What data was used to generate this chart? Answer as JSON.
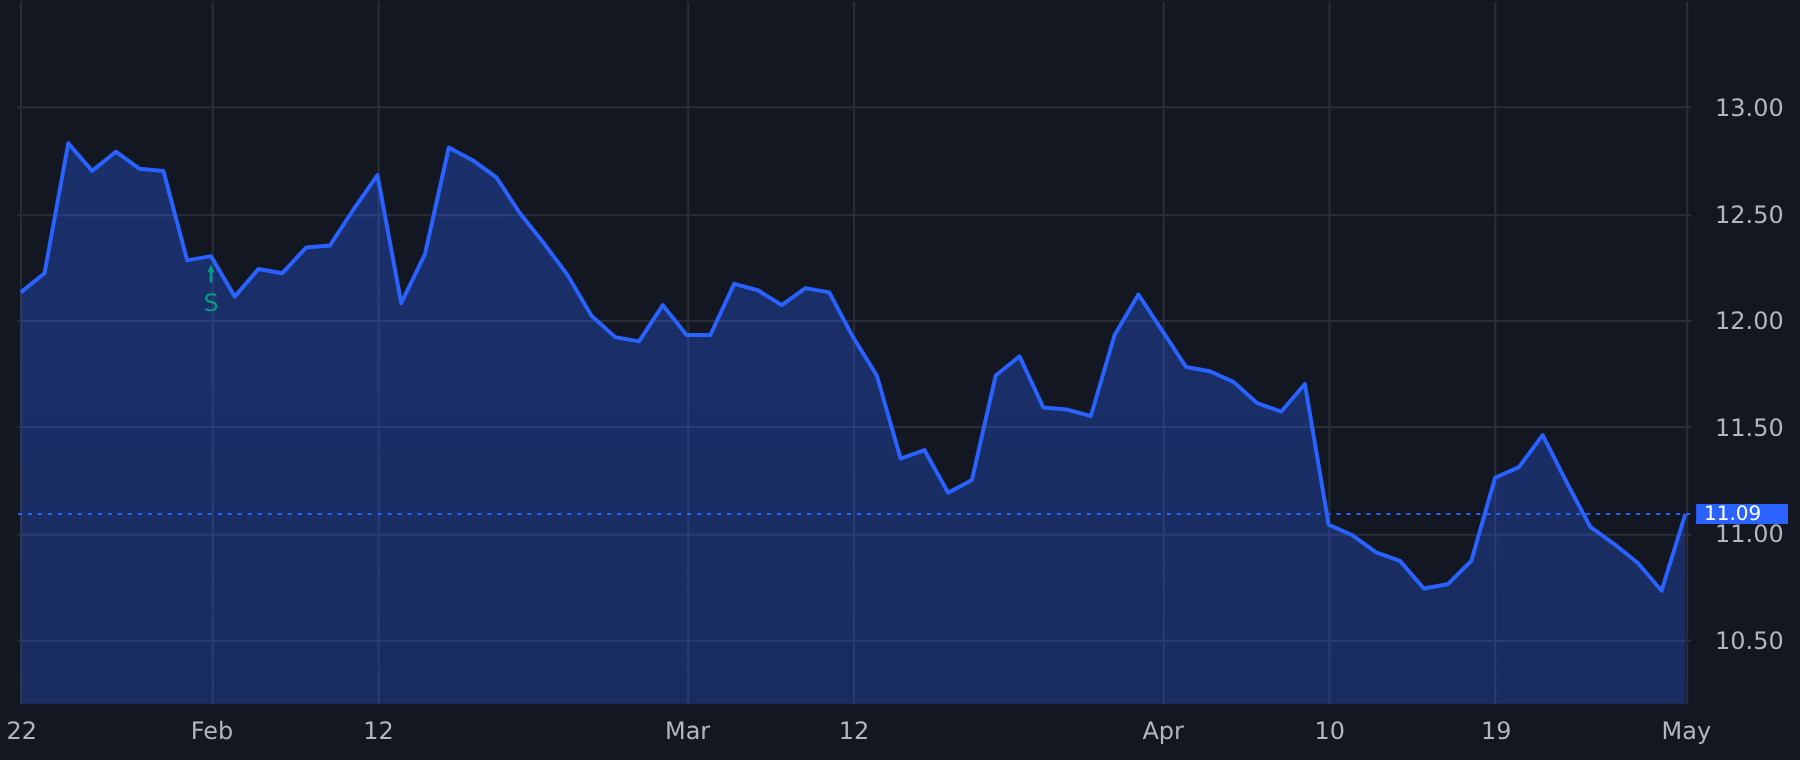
{
  "chart_data": {
    "type": "area",
    "categories": [
      "22",
      null,
      null,
      null,
      null,
      null,
      null,
      null,
      "Feb",
      null,
      null,
      null,
      null,
      null,
      null,
      "12",
      null,
      null,
      null,
      null,
      null,
      null,
      null,
      null,
      null,
      null,
      null,
      null,
      "Mar",
      null,
      null,
      null,
      null,
      null,
      null,
      "12",
      null,
      null,
      null,
      null,
      null,
      null,
      null,
      null,
      null,
      null,
      null,
      null,
      "Apr",
      null,
      null,
      null,
      null,
      null,
      null,
      "10",
      null,
      null,
      null,
      null,
      null,
      null,
      "19",
      null,
      null,
      null,
      null,
      null,
      null,
      null,
      "May"
    ],
    "series": [
      {
        "color": "#2962ff",
        "values": [
          12.13,
          12.22,
          12.83,
          12.7,
          12.79,
          12.71,
          12.7,
          12.28,
          12.3,
          12.11,
          12.24,
          12.22,
          12.34,
          12.35,
          12.52,
          12.68,
          12.08,
          12.31,
          12.81,
          12.75,
          12.67,
          12.5,
          12.36,
          12.21,
          12.02,
          11.92,
          11.9,
          12.07,
          11.93,
          11.93,
          12.17,
          12.14,
          12.07,
          12.15,
          12.13,
          11.92,
          11.74,
          11.35,
          11.39,
          11.19,
          11.25,
          11.74,
          11.83,
          11.59,
          11.58,
          11.55,
          11.93,
          12.12,
          11.95,
          11.78,
          11.76,
          11.71,
          11.61,
          11.57,
          11.7,
          11.04,
          10.99,
          10.91,
          10.87,
          10.74,
          10.76,
          10.87,
          11.26,
          11.31,
          11.46,
          11.24,
          11.03,
          10.95,
          10.86,
          10.73,
          11.09
        ]
      }
    ],
    "ylim": [
      10.2,
      13.5
    ],
    "yticks": [
      {
        "value": 10.5,
        "label": "10.50"
      },
      {
        "value": 11,
        "label": "11.00"
      },
      {
        "value": 11.5,
        "label": "11.50"
      },
      {
        "value": 12,
        "label": "12.00"
      },
      {
        "value": 12.5,
        "label": "12.50"
      },
      {
        "value": 13,
        "label": "13.00"
      }
    ],
    "grid": true,
    "ref_lines": [
      {
        "axis": "y",
        "value": 11.09,
        "label": "11.09",
        "color": "#2962ff",
        "line_style": "dotted"
      }
    ],
    "annotations": [
      {
        "text": "S",
        "x": "Feb",
        "y": 12.2
      }
    ]
  }
}
